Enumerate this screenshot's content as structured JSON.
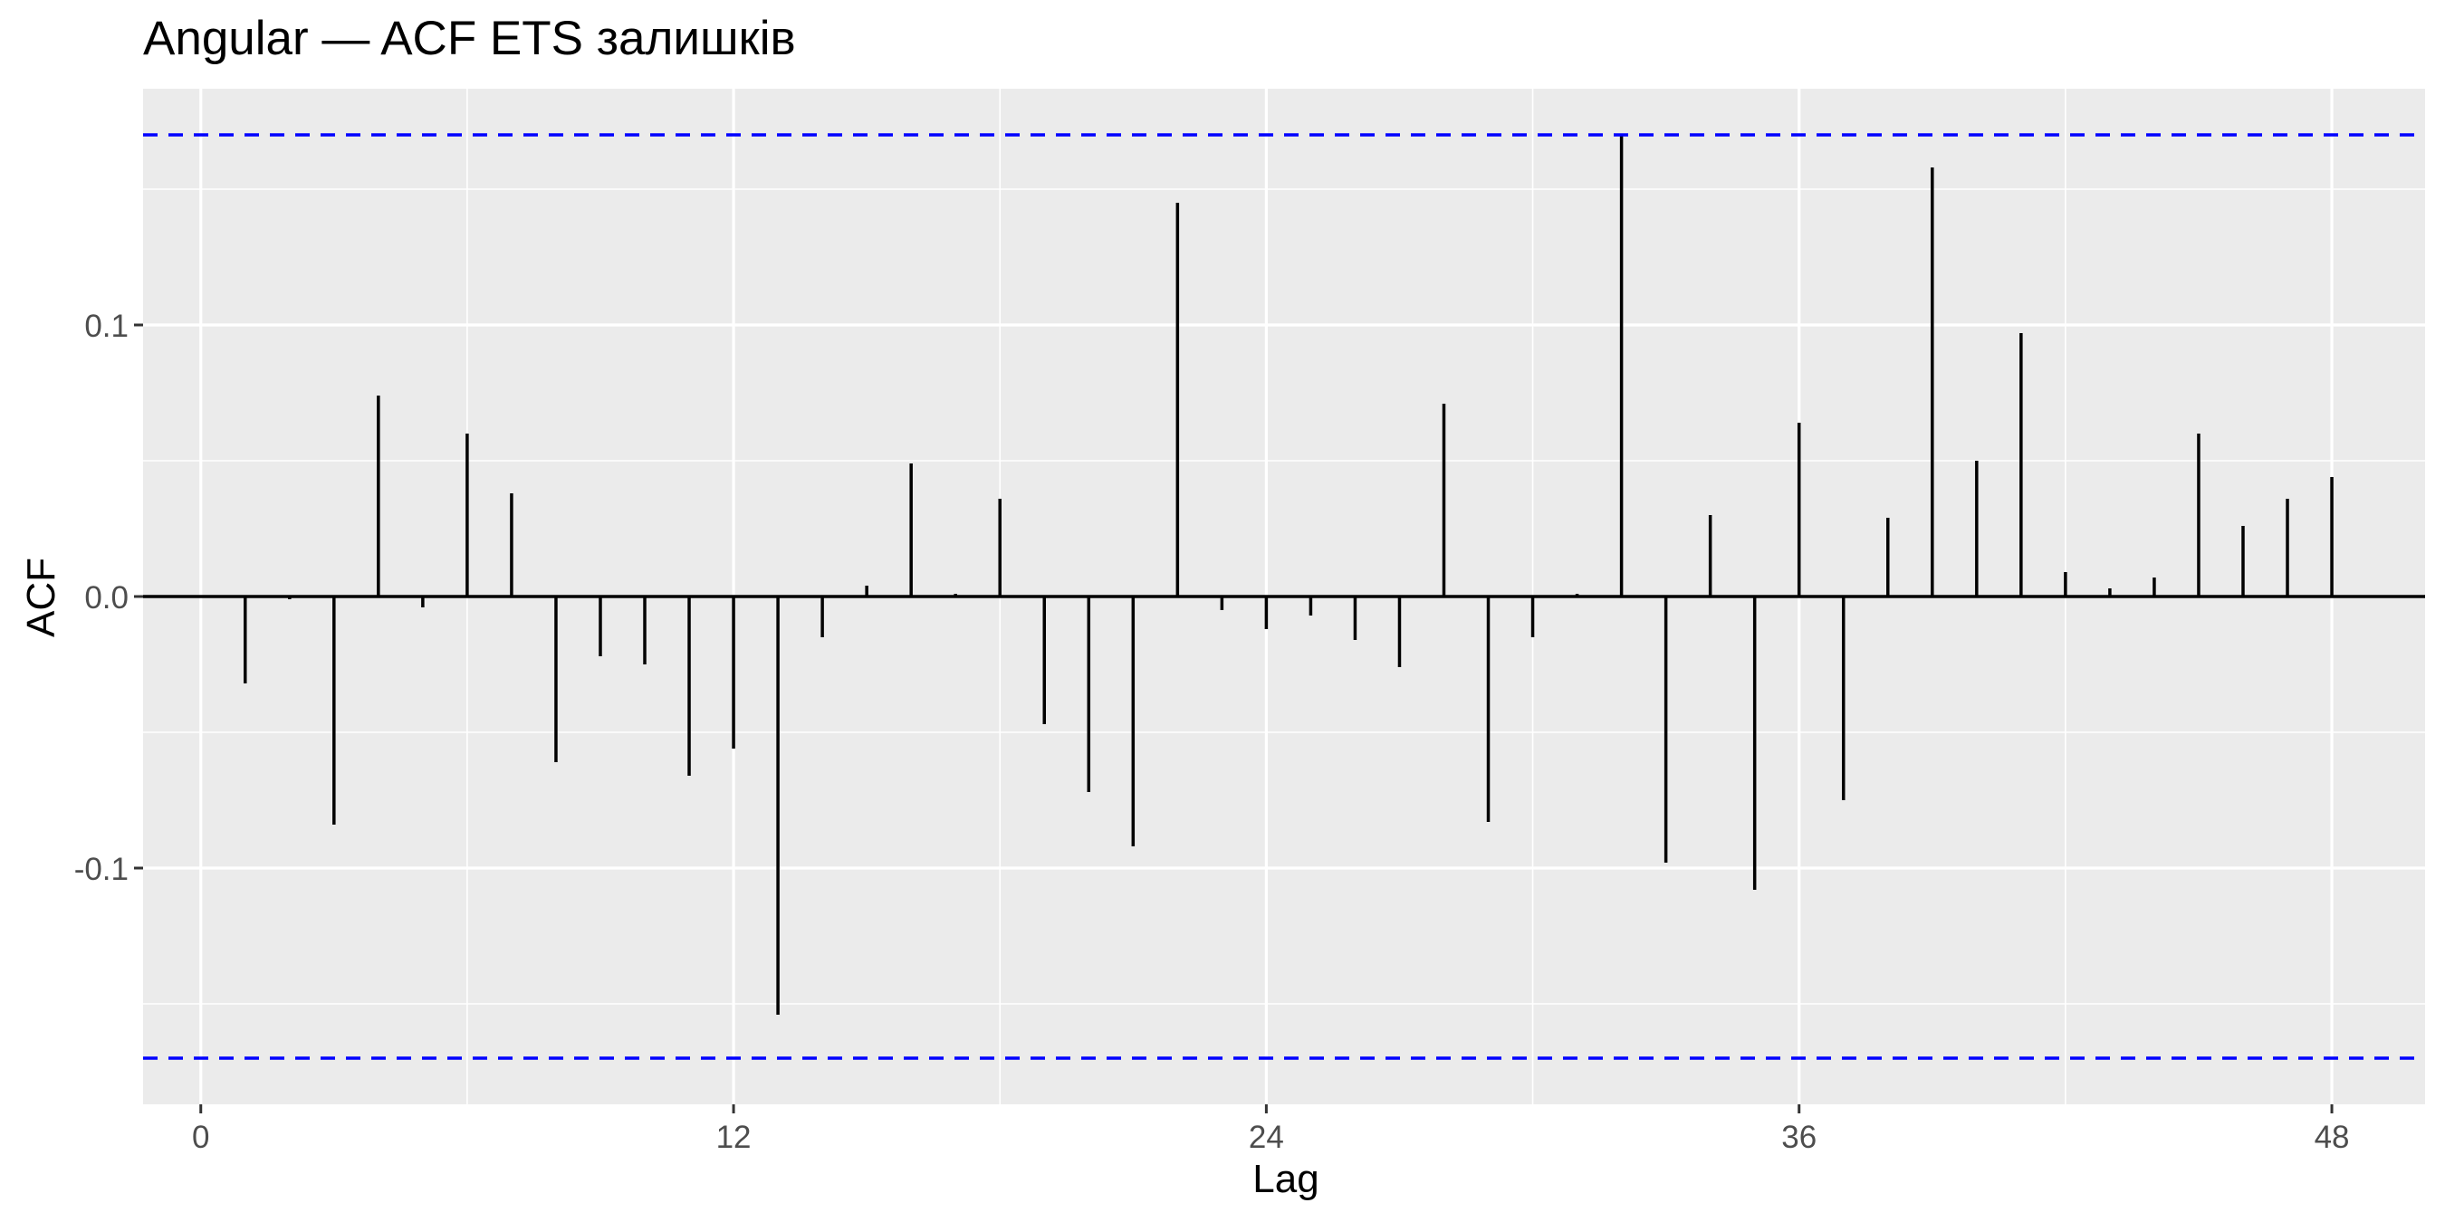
{
  "chart_data": {
    "type": "bar",
    "title": "Angular — ACF ETS залишків",
    "xlabel": "Lag",
    "ylabel": "ACF",
    "xlim": [
      -1.3,
      50.1
    ],
    "ylim": [
      -0.187,
      0.187
    ],
    "x_ticks": [
      0,
      12,
      24,
      36,
      48
    ],
    "y_ticks": [
      -0.1,
      0.0,
      0.1
    ],
    "y_tick_labels": [
      "-0.1",
      "0.0",
      "0.1"
    ],
    "confidence_bound": 0.17,
    "grid": true,
    "colors": {
      "panel": "#EBEBEB",
      "grid": "#FFFFFF",
      "bars": "#000000",
      "bounds": "#0000FF"
    },
    "lags": [
      1,
      2,
      3,
      4,
      5,
      6,
      7,
      8,
      9,
      10,
      11,
      12,
      13,
      14,
      15,
      16,
      17,
      18,
      19,
      20,
      21,
      22,
      23,
      24,
      25,
      26,
      27,
      28,
      29,
      30,
      31,
      32,
      33,
      34,
      35,
      36,
      37,
      38,
      39,
      40,
      41,
      42,
      43,
      44,
      45,
      46,
      47,
      48
    ],
    "values": [
      -0.032,
      -0.001,
      -0.084,
      0.074,
      -0.004,
      0.06,
      0.038,
      -0.061,
      -0.022,
      -0.025,
      -0.066,
      -0.056,
      -0.154,
      -0.015,
      0.004,
      0.049,
      0.001,
      0.036,
      -0.047,
      -0.072,
      -0.092,
      0.145,
      -0.005,
      -0.012,
      -0.007,
      -0.016,
      -0.026,
      0.071,
      -0.083,
      -0.015,
      0.001,
      0.17,
      -0.098,
      0.03,
      -0.108,
      0.064,
      -0.075,
      0.029,
      0.158,
      0.05,
      0.097,
      0.009,
      0.003,
      0.007,
      0.06,
      0.026,
      0.036,
      0.044
    ]
  }
}
